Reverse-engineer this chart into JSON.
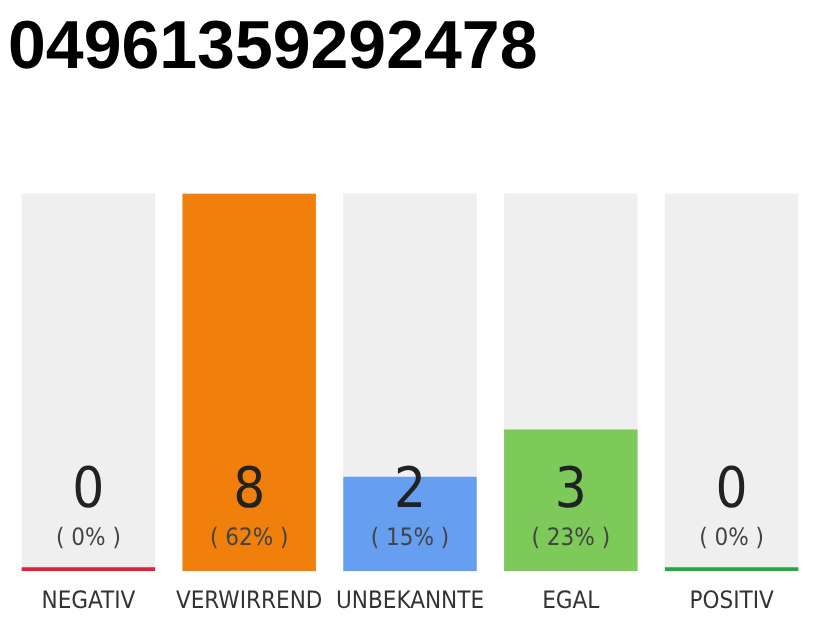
{
  "chart_data": {
    "type": "bar",
    "title": "04961359292478",
    "categories": [
      "NEGATIV",
      "VERWIRREND",
      "UNBEKANNTE",
      "EGAL",
      "POSITIV"
    ],
    "values": [
      0,
      8,
      2,
      3,
      0
    ],
    "colors": [
      "#e0203c",
      "#f07f0c",
      "#679ff0",
      "#7dc95a",
      "#28a745"
    ],
    "ylim": [
      0,
      8
    ],
    "tick_labels": "x",
    "data_labels": true,
    "grid": false,
    "legend": false,
    "annotations": [
      "( 0% )",
      "( 62% )",
      "( 15% )",
      "( 23% )",
      "( 0% )"
    ]
  }
}
